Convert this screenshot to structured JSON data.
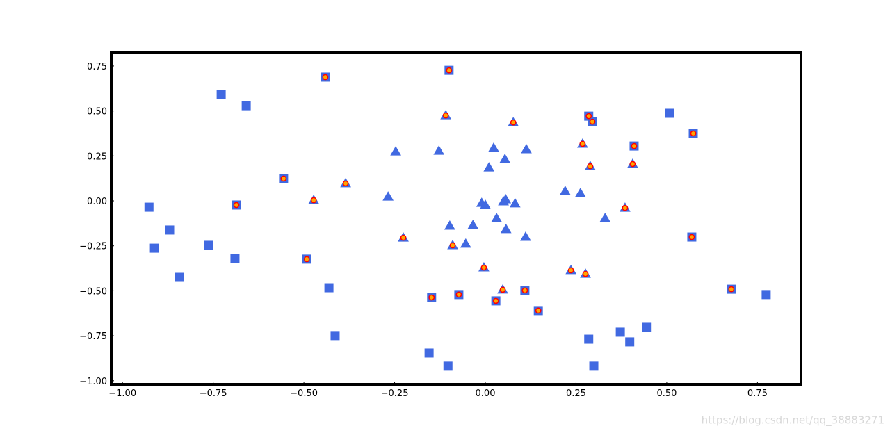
{
  "chart_data": {
    "type": "scatter",
    "xlim": [
      -1.031,
      0.87
    ],
    "ylim": [
      -1.02,
      0.827
    ],
    "xticks": [
      {
        "value": -1.0,
        "label": "−1.00"
      },
      {
        "value": -0.75,
        "label": "−0.75"
      },
      {
        "value": -0.5,
        "label": "−0.50"
      },
      {
        "value": -0.25,
        "label": "−0.25"
      },
      {
        "value": 0.0,
        "label": "0.00"
      },
      {
        "value": 0.25,
        "label": "0.25"
      },
      {
        "value": 0.5,
        "label": "0.50"
      },
      {
        "value": 0.75,
        "label": "0.75"
      }
    ],
    "yticks": [
      {
        "value": -1.0,
        "label": "−1.00"
      },
      {
        "value": -0.75,
        "label": "−0.75"
      },
      {
        "value": -0.5,
        "label": "−0.50"
      },
      {
        "value": -0.25,
        "label": "−0.25"
      },
      {
        "value": 0.0,
        "label": "0.00"
      },
      {
        "value": 0.25,
        "label": "0.25"
      },
      {
        "value": 0.5,
        "label": "0.50"
      },
      {
        "value": 0.75,
        "label": "0.75"
      }
    ],
    "grid": false,
    "series": [
      {
        "marker": "square",
        "color": "#4169e1",
        "edgecolor": "#4169e1",
        "x": [
          -0.441,
          -0.1,
          -0.728,
          -0.659,
          0.508,
          0.285,
          0.295,
          0.573,
          0.41,
          -0.556,
          -0.927,
          -0.686,
          -0.87,
          -0.912,
          -0.762,
          0.569,
          -0.69,
          -0.492,
          -0.843,
          -0.431,
          0.678,
          0.774,
          -0.148,
          -0.073,
          0.109,
          0.029,
          0.146,
          -0.414,
          0.444,
          0.372,
          0.285,
          0.398,
          -0.155,
          -0.103,
          0.299
        ],
        "values": [
          0.688,
          0.726,
          0.591,
          0.529,
          0.487,
          0.471,
          0.44,
          0.375,
          0.305,
          0.124,
          -0.035,
          -0.023,
          -0.162,
          -0.263,
          -0.247,
          -0.201,
          -0.321,
          -0.324,
          -0.425,
          -0.483,
          -0.491,
          -0.521,
          -0.537,
          -0.521,
          -0.498,
          -0.556,
          -0.61,
          -0.749,
          -0.703,
          -0.73,
          -0.769,
          -0.784,
          -0.846,
          -0.919,
          -0.919
        ]
      },
      {
        "marker": "triangle",
        "color": "#4169e1",
        "edgecolor": "#4169e1",
        "x": [
          -0.109,
          0.077,
          -0.247,
          -0.128,
          0.023,
          0.113,
          0.268,
          0.054,
          0.01,
          0.289,
          0.406,
          -0.385,
          -0.473,
          -0.268,
          0.22,
          0.262,
          -0.01,
          0.0,
          0.056,
          0.05,
          0.082,
          0.385,
          0.33,
          0.031,
          -0.098,
          -0.034,
          0.057,
          0.111,
          -0.226,
          -0.09,
          -0.054,
          -0.004,
          0.236,
          0.276,
          0.048
        ],
        "values": [
          0.475,
          0.436,
          0.274,
          0.278,
          0.294,
          0.286,
          0.317,
          0.232,
          0.185,
          0.193,
          0.205,
          0.097,
          0.004,
          0.023,
          0.054,
          0.042,
          -0.012,
          -0.023,
          0.008,
          -0.004,
          -0.015,
          -0.039,
          -0.097,
          -0.097,
          -0.139,
          -0.135,
          -0.158,
          -0.201,
          -0.205,
          -0.247,
          -0.239,
          -0.371,
          -0.386,
          -0.406,
          -0.494
        ]
      },
      {
        "marker": "circle",
        "color": "#ffa500",
        "edgecolor": "#ff0000",
        "x": [
          -0.441,
          -0.1,
          0.285,
          0.295,
          0.573,
          0.41,
          -0.556,
          -0.686,
          0.569,
          -0.492,
          0.678,
          -0.148,
          -0.073,
          0.109,
          0.029,
          0.146,
          -0.109,
          0.077,
          0.268,
          0.289,
          0.406,
          -0.385,
          -0.473,
          0.385,
          -0.226,
          -0.09,
          -0.004,
          0.236,
          0.276,
          0.048
        ],
        "values": [
          0.688,
          0.726,
          0.471,
          0.44,
          0.375,
          0.305,
          0.124,
          -0.023,
          -0.201,
          -0.324,
          -0.491,
          -0.537,
          -0.521,
          -0.498,
          -0.556,
          -0.61,
          0.475,
          0.436,
          0.317,
          0.193,
          0.205,
          0.097,
          0.004,
          -0.039,
          -0.205,
          -0.247,
          -0.371,
          -0.386,
          -0.406,
          -0.494
        ]
      }
    ],
    "watermark": "https://blog.csdn.net/qq_38883271"
  }
}
